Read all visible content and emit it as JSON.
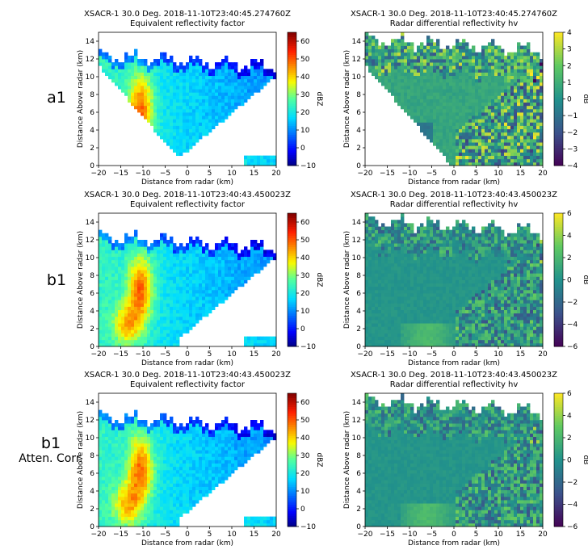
{
  "row_labels": [
    {
      "main": "a1",
      "sub": ""
    },
    {
      "main": "b1",
      "sub": ""
    },
    {
      "main": "b1",
      "sub": "Atten. Corr."
    }
  ],
  "colors": {
    "grid": "#000000",
    "fig_bg": "#ffffff",
    "plot_bg": "#ffffff"
  },
  "chart_data": [
    {
      "type": "heatmap",
      "title": "XSACR-1 30.0 Deg. 2018-11-10T23:40:45.274760Z",
      "subtitle": "Equivalent reflectivity factor",
      "xlabel": "Distance from radar (km)",
      "ylabel": "Distance Above radar (km)",
      "xlim": [
        -20,
        20
      ],
      "ylim": [
        0,
        15
      ],
      "xticks": [
        -20,
        -15,
        -10,
        -5,
        0,
        5,
        10,
        15,
        20
      ],
      "yticks": [
        0,
        2,
        4,
        6,
        8,
        10,
        12,
        14
      ],
      "colorbar": {
        "label": "dBZ",
        "colormap": "jet",
        "range": [
          -10,
          65
        ],
        "ticks": [
          -10,
          0,
          10,
          20,
          30,
          40,
          50,
          60
        ]
      }
    },
    {
      "type": "heatmap",
      "title": "XSACR-1 30.0 Deg. 2018-11-10T23:40:45.274760Z",
      "subtitle": "Radar differential reflectivity hv",
      "xlabel": "Distance from radar (km)",
      "ylabel": "Distance Above radar (km)",
      "xlim": [
        -20,
        20
      ],
      "ylim": [
        0,
        15
      ],
      "xticks": [
        -20,
        -15,
        -10,
        -5,
        0,
        5,
        10,
        15,
        20
      ],
      "yticks": [
        0,
        2,
        4,
        6,
        8,
        10,
        12,
        14
      ],
      "colorbar": {
        "label": "dB",
        "colormap": "viridis",
        "range": [
          -4,
          4
        ],
        "ticks": [
          -4,
          -3,
          -2,
          -1,
          0,
          1,
          2,
          3,
          4
        ]
      }
    },
    {
      "type": "heatmap",
      "title": "XSACR-1 30.0 Deg. 2018-11-10T23:40:43.450023Z",
      "subtitle": "Equivalent reflectivity factor",
      "xlabel": "Distance from radar (km)",
      "ylabel": "Distance Above radar (km)",
      "xlim": [
        -20,
        20
      ],
      "ylim": [
        0,
        15
      ],
      "xticks": [
        -20,
        -15,
        -10,
        -5,
        0,
        5,
        10,
        15,
        20
      ],
      "yticks": [
        0,
        2,
        4,
        6,
        8,
        10,
        12,
        14
      ],
      "colorbar": {
        "label": "dBZ",
        "colormap": "jet",
        "range": [
          -10,
          65
        ],
        "ticks": [
          -10,
          0,
          10,
          20,
          30,
          40,
          50,
          60
        ]
      }
    },
    {
      "type": "heatmap",
      "title": "XSACR-1 30.0 Deg. 2018-11-10T23:40:43.450023Z",
      "subtitle": "Radar differential reflectivity hv",
      "xlabel": "Distance from radar (km)",
      "ylabel": "Distance Above radar (km)",
      "xlim": [
        -20,
        20
      ],
      "ylim": [
        0,
        15
      ],
      "xticks": [
        -20,
        -15,
        -10,
        -5,
        0,
        5,
        10,
        15,
        20
      ],
      "yticks": [
        0,
        2,
        4,
        6,
        8,
        10,
        12,
        14
      ],
      "colorbar": {
        "label": "dB",
        "colormap": "viridis",
        "range": [
          -6,
          6
        ],
        "ticks": [
          -6,
          -4,
          -2,
          0,
          2,
          4,
          6
        ]
      }
    },
    {
      "type": "heatmap",
      "title": "XSACR-1 30.0 Deg. 2018-11-10T23:40:43.450023Z",
      "subtitle": "Equivalent reflectivity factor",
      "xlabel": "Distance from radar (km)",
      "ylabel": "Distance Above radar (km)",
      "xlim": [
        -20,
        20
      ],
      "ylim": [
        0,
        15
      ],
      "xticks": [
        -20,
        -15,
        -10,
        -5,
        0,
        5,
        10,
        15,
        20
      ],
      "yticks": [
        0,
        2,
        4,
        6,
        8,
        10,
        12,
        14
      ],
      "colorbar": {
        "label": "dBZ",
        "colormap": "jet",
        "range": [
          -10,
          65
        ],
        "ticks": [
          -10,
          0,
          10,
          20,
          30,
          40,
          50,
          60
        ]
      }
    },
    {
      "type": "heatmap",
      "title": "XSACR-1 30.0 Deg. 2018-11-10T23:40:43.450023Z",
      "subtitle": "Radar differential reflectivity hv",
      "xlabel": "Distance from radar (km)",
      "ylabel": "Distance Above radar (km)",
      "xlim": [
        -20,
        20
      ],
      "ylim": [
        0,
        15
      ],
      "xticks": [
        -20,
        -15,
        -10,
        -5,
        0,
        5,
        10,
        15,
        20
      ],
      "yticks": [
        0,
        2,
        4,
        6,
        8,
        10,
        12,
        14
      ],
      "colorbar": {
        "label": "dB",
        "colormap": "viridis",
        "range": [
          -6,
          6
        ],
        "ticks": [
          -6,
          -4,
          -2,
          0,
          2,
          4,
          6
        ]
      }
    }
  ]
}
